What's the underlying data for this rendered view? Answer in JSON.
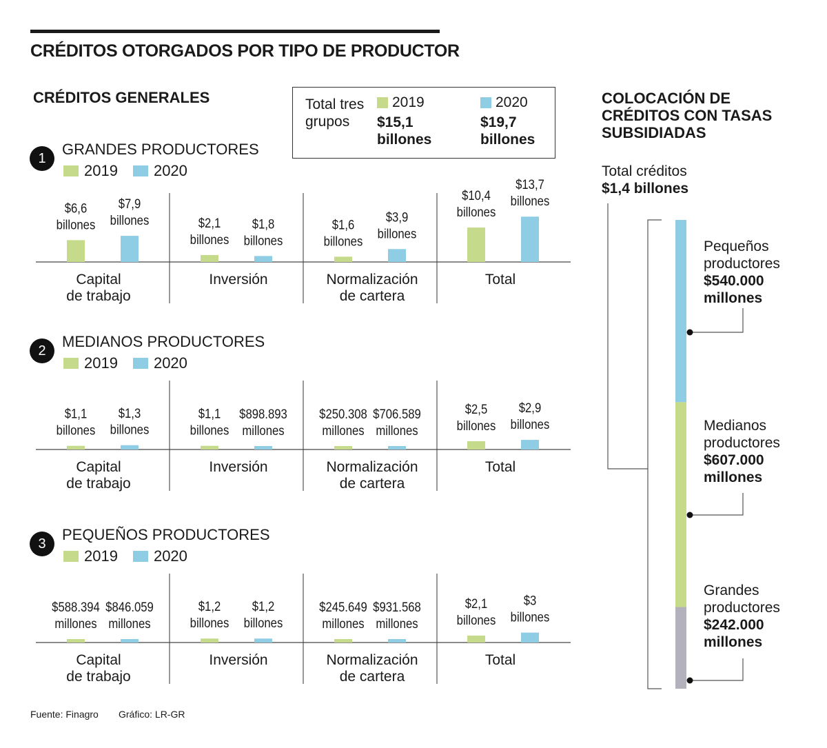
{
  "header": {
    "title": "CRÉDITOS OTORGADOS POR TIPO DE PRODUCTOR"
  },
  "section_title": "CRÉDITOS GENERALES",
  "colors": {
    "y2019": "#c5da8a",
    "y2020": "#8ecde4",
    "grandes_bar": "#b3b1bb"
  },
  "totals_box": {
    "label": "Total tres grupos",
    "y2019": {
      "year": "2019",
      "value": "$15,1 billones"
    },
    "y2020": {
      "year": "2020",
      "value": "$19,7 billones"
    }
  },
  "legend": {
    "y2019": "2019",
    "y2020": "2020"
  },
  "chart_data": [
    {
      "type": "bar",
      "number": "1",
      "title": "GRANDES PRODUCTORES",
      "categories": [
        "Capital de trabajo",
        "Inversión",
        "Normalización de cartera",
        "Total"
      ],
      "series": [
        {
          "name": "2019",
          "values": [
            6.6,
            2.1,
            1.6,
            10.4
          ],
          "labels": [
            "$6,6 billones",
            "$2,1 billones",
            "$1,6 billones",
            "$10,4 billones"
          ]
        },
        {
          "name": "2020",
          "values": [
            7.9,
            1.8,
            3.9,
            13.7
          ],
          "labels": [
            "$7,9 billones",
            "$1,8 billones",
            "$3,9 billones",
            "$13,7 billones"
          ]
        }
      ]
    },
    {
      "type": "bar",
      "number": "2",
      "title": "MEDIANOS PRODUCTORES",
      "categories": [
        "Capital de trabajo",
        "Inversión",
        "Normalización de cartera",
        "Total"
      ],
      "series": [
        {
          "name": "2019",
          "values": [
            1.1,
            1.1,
            0.250308,
            2.5
          ],
          "labels": [
            "$1,1 billones",
            "$1,1 billones",
            "$250.308 millones",
            "$2,5 billones"
          ]
        },
        {
          "name": "2020",
          "values": [
            1.3,
            0.898893,
            0.706589,
            2.9
          ],
          "labels": [
            "$1,3 billones",
            "$898.893 millones",
            "$706.589 millones",
            "$2,9 billones"
          ]
        }
      ]
    },
    {
      "type": "bar",
      "number": "3",
      "title": "PEQUEÑOS PRODUCTORES",
      "categories": [
        "Capital de trabajo",
        "Inversión",
        "Normalización de cartera",
        "Total"
      ],
      "series": [
        {
          "name": "2019",
          "values": [
            0.588394,
            1.2,
            0.245649,
            2.1
          ],
          "labels": [
            "$588.394 millones",
            "$1,2 billones",
            "$245.649 millones",
            "$2,1 billones"
          ]
        },
        {
          "name": "2020",
          "values": [
            0.846059,
            1.2,
            0.931568,
            3.0
          ],
          "labels": [
            "$846.059 millones",
            "$1,2 billones",
            "$931.568 millones",
            "$3 billones"
          ]
        }
      ]
    },
    {
      "type": "bar",
      "stacked": true,
      "title": "COLOCACIÓN DE CRÉDITOS CON TASAS SUBSIDIADAS",
      "total_label": "Total créditos",
      "total_value": "$1,4 billones",
      "segments": [
        {
          "name": "Pequeños productores",
          "value": 540000,
          "label": "$540.000 millones"
        },
        {
          "name": "Medianos productores",
          "value": 607000,
          "label": "$607.000 millones"
        },
        {
          "name": "Grandes productores",
          "value": 242000,
          "label": "$242.000 millones"
        }
      ]
    }
  ],
  "footer": {
    "source": "Fuente: Finagro",
    "credit": "Gráfico: LR-GR"
  }
}
